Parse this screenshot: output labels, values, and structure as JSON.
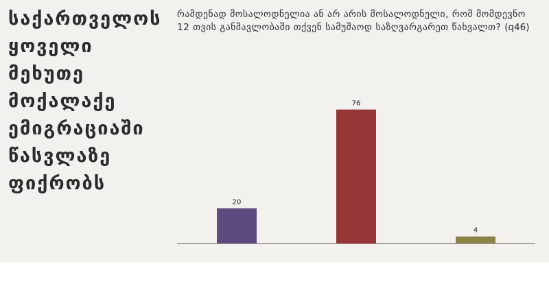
{
  "side_title": "საქართველოს\nყოველი მეხუთე\nმოქალაქე\nემიგრაციაში\nწასვლაზე\nფიქრობს",
  "question": {
    "text": "რამდენად მოსალოდნელია ან არ არის მოსალოდნელი, რომ მომდევნო 12 თვის განმავლობაში თქვენ სამუშაოდ საზღვარგარეთ წახვალთ?",
    "code": "(q46)"
  },
  "chart_data": {
    "type": "bar",
    "title": "",
    "xlabel": "",
    "ylabel": "",
    "categories": [
      "",
      "",
      ""
    ],
    "values": [
      20,
      76,
      4
    ],
    "colors": [
      "#5e4a7e",
      "#953535",
      "#8a8248"
    ],
    "ylim": [
      0,
      100
    ],
    "grid": false,
    "legend": "none"
  }
}
